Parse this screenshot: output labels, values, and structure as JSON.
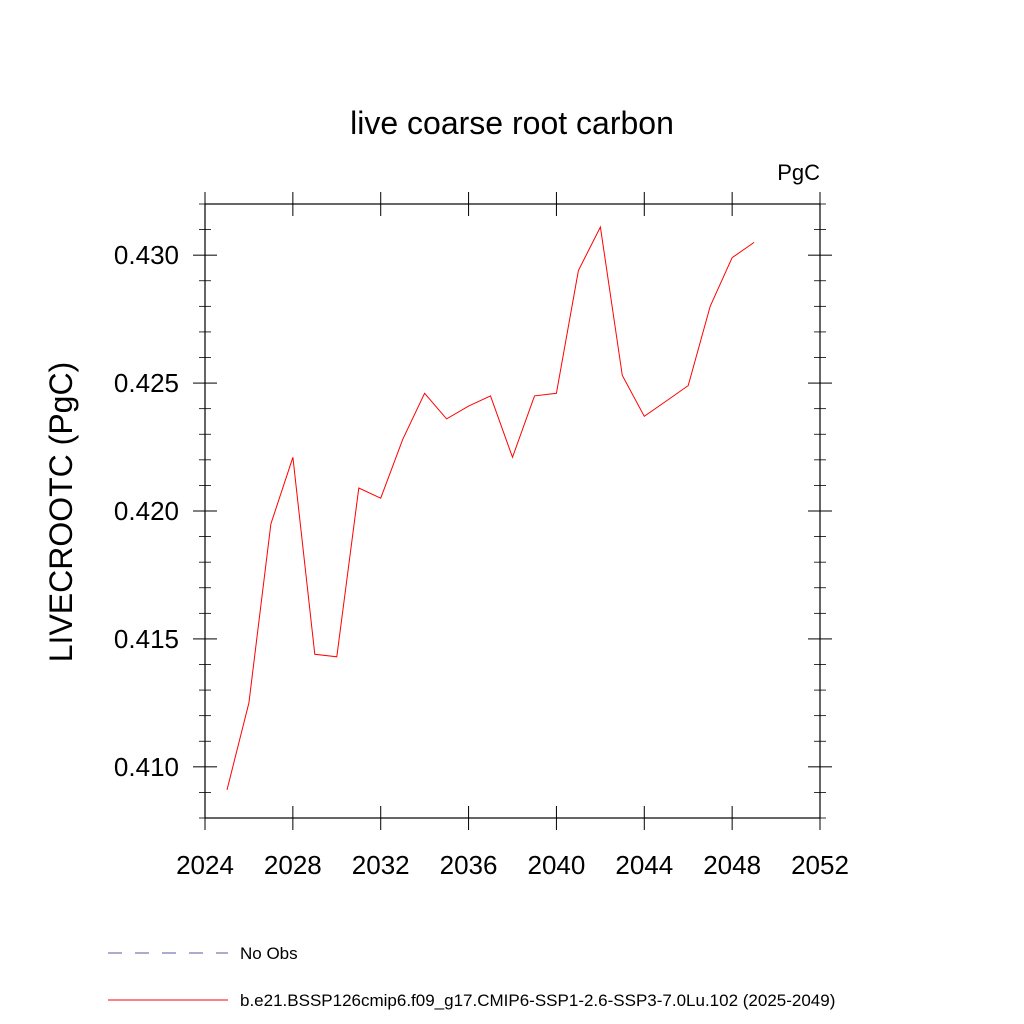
{
  "chart_data": {
    "type": "line",
    "title": "live coarse root carbon",
    "units_label": "PgC",
    "ylabel": "LIVECROOTC  (PgC)",
    "xlabel": "",
    "xlim": [
      2024,
      2052
    ],
    "ylim": [
      0.408,
      0.432
    ],
    "x_ticks": [
      "2024",
      "2028",
      "2032",
      "2036",
      "2040",
      "2044",
      "2048",
      "2052"
    ],
    "y_ticks": [
      "0.410",
      "0.415",
      "0.420",
      "0.425",
      "0.430"
    ],
    "grid": false,
    "x": [
      2025,
      2026,
      2027,
      2028,
      2029,
      2030,
      2031,
      2032,
      2033,
      2034,
      2035,
      2036,
      2037,
      2038,
      2039,
      2040,
      2041,
      2042,
      2043,
      2044,
      2045,
      2046,
      2047,
      2048,
      2049
    ],
    "series": [
      {
        "name": "b.e21.BSSP126cmip6.f09_g17.CMIP6-SSP1-2.6-SSP3-7.0Lu.102 (2025-2049)",
        "color": "#ff0000",
        "values": [
          0.4091,
          0.4125,
          0.4195,
          0.4221,
          0.4144,
          0.4143,
          0.4209,
          0.4205,
          0.4228,
          0.4246,
          0.4236,
          0.4241,
          0.4245,
          0.4221,
          0.4245,
          0.4246,
          0.4294,
          0.4311,
          0.4253,
          0.4237,
          0.4243,
          0.4249,
          0.428,
          0.4299,
          0.4305
        ]
      }
    ],
    "legend": {
      "placement": "bottom",
      "entries": [
        {
          "label": "No Obs",
          "color": "#5a5aa0",
          "style": "dashed"
        },
        {
          "label": "b.e21.BSSP126cmip6.f09_g17.CMIP6-SSP1-2.6-SSP3-7.0Lu.102 (2025-2049)",
          "color": "#ff0000",
          "style": "solid"
        }
      ]
    }
  }
}
